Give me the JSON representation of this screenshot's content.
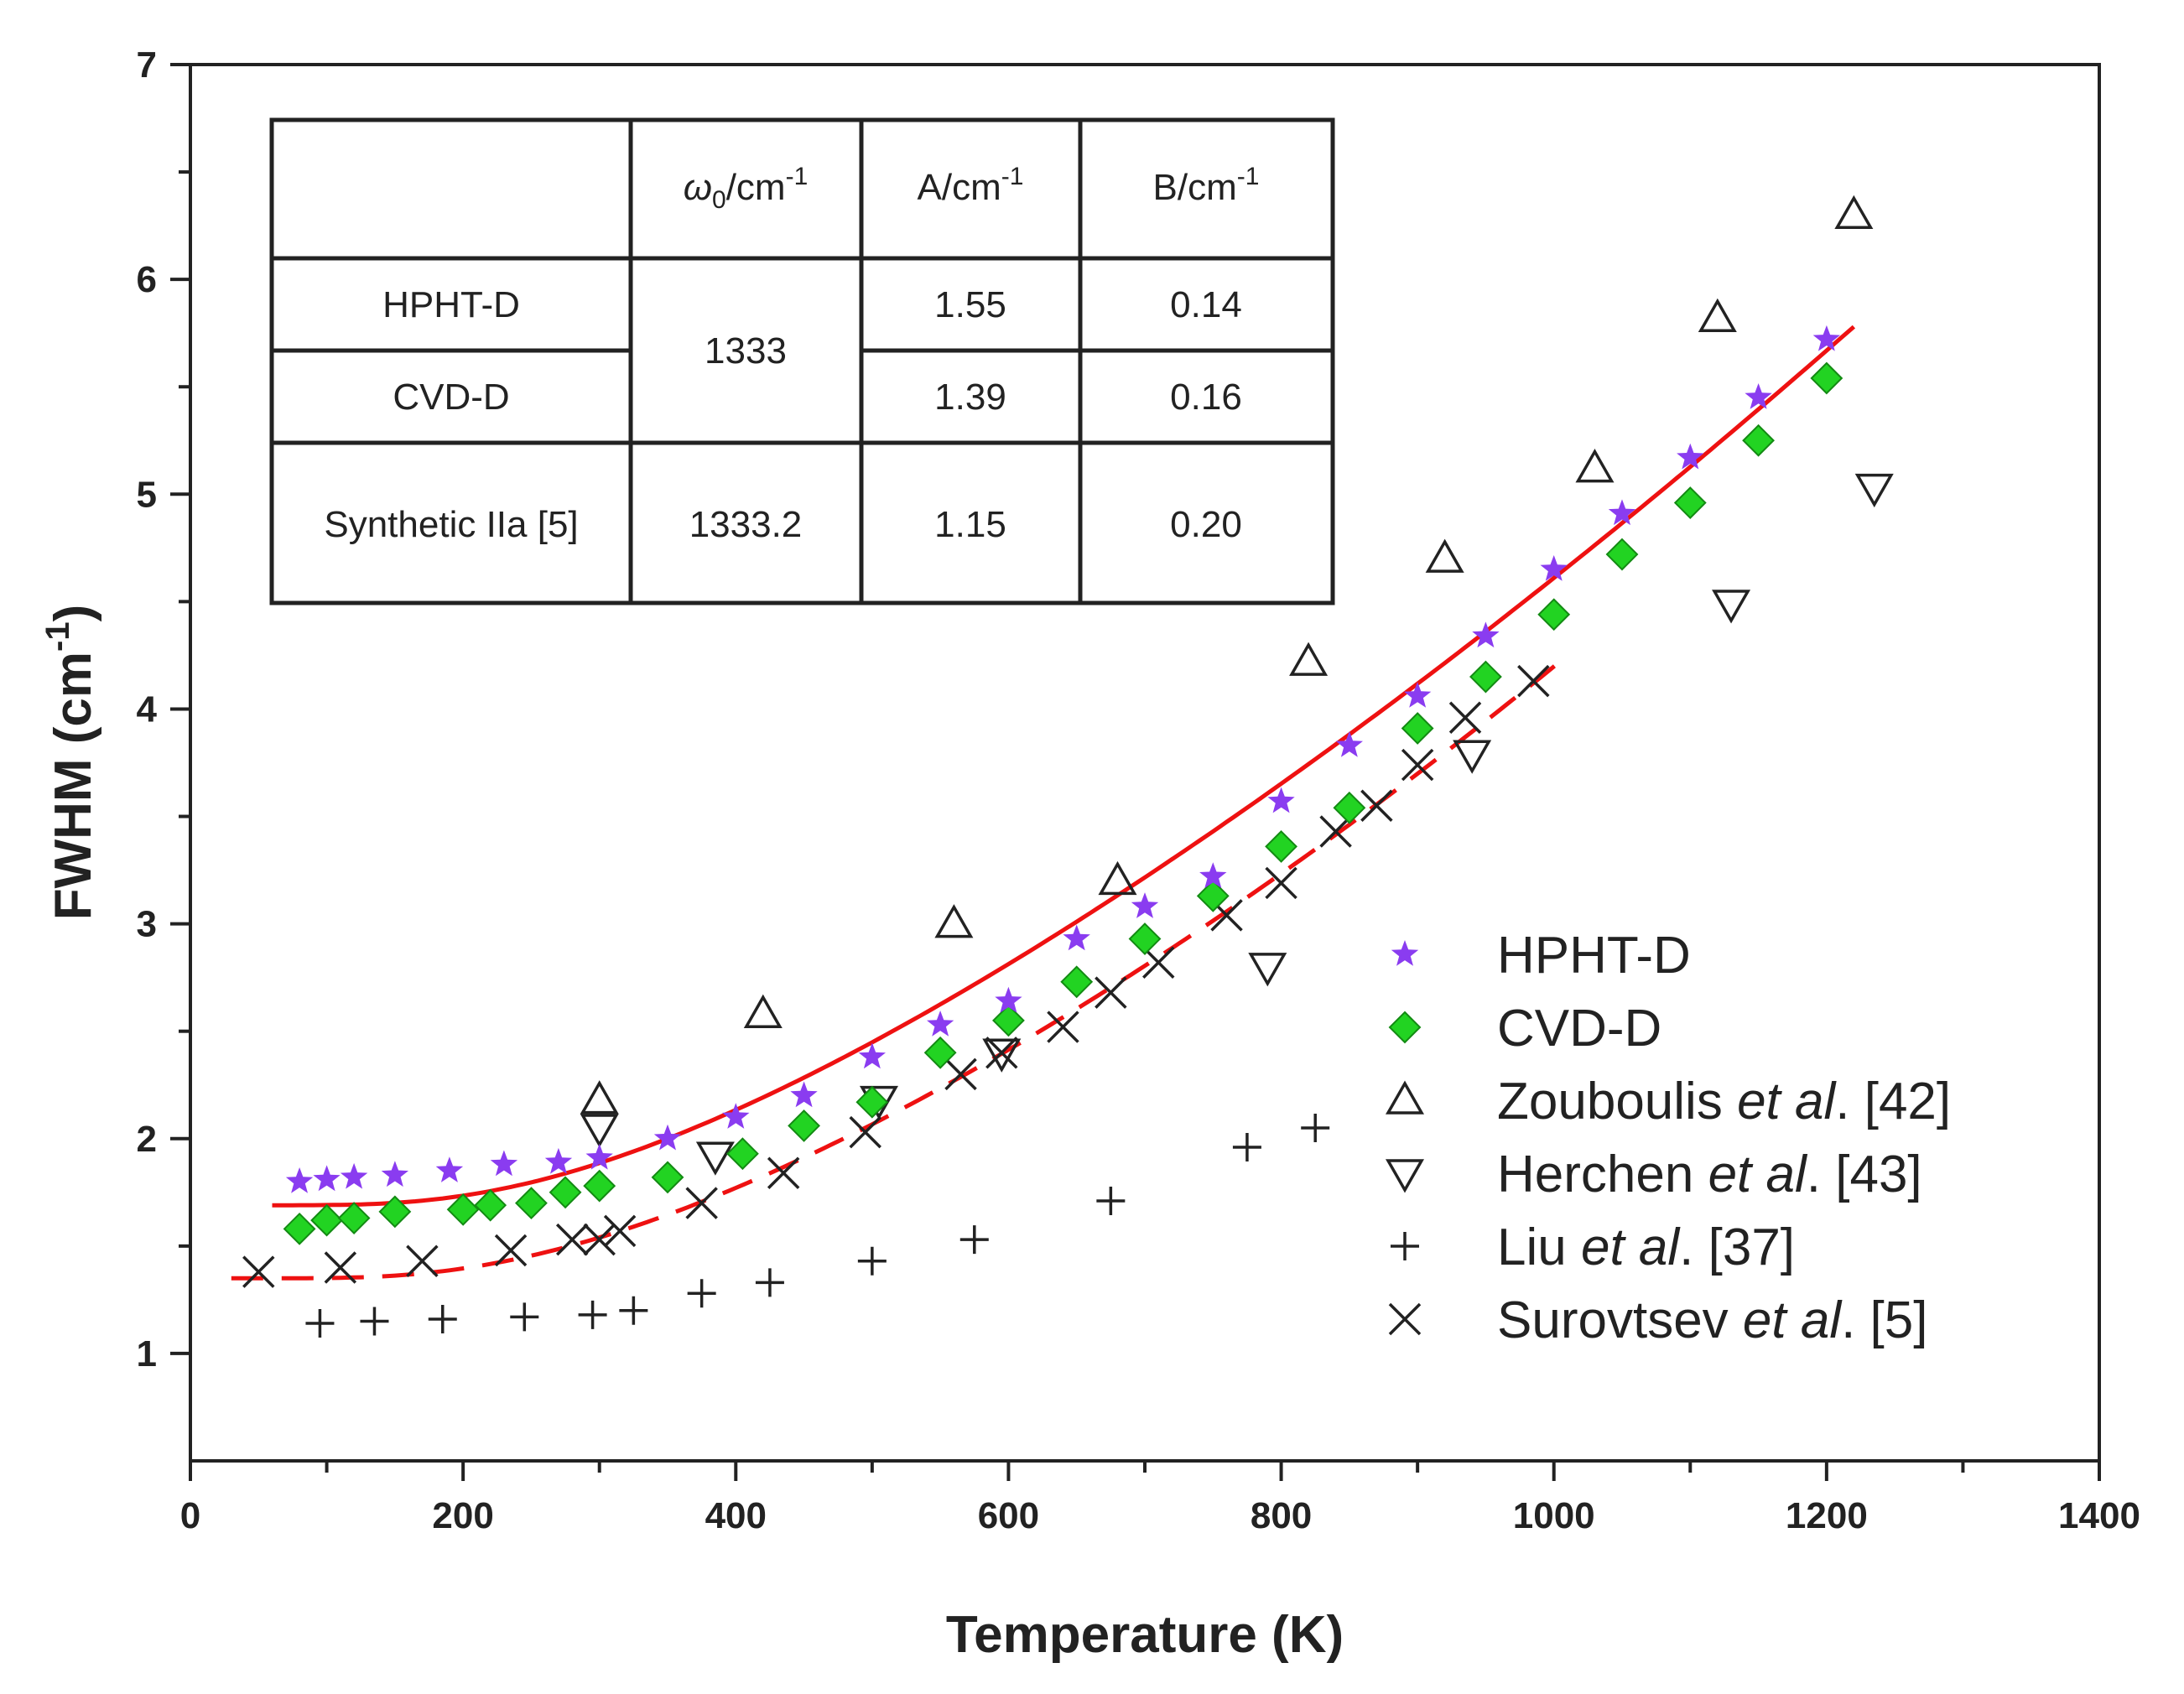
{
  "chart_data": {
    "type": "scatter",
    "title": "",
    "xlabel": "Temperature (K)",
    "ylabel_main": "FWHM (cm",
    "ylabel_sup": "-1",
    "ylabel_close": ")",
    "xlim": [
      0,
      1400
    ],
    "ylim": [
      0.5,
      7
    ],
    "xticks": [
      0,
      200,
      400,
      600,
      800,
      1000,
      1200,
      1400
    ],
    "yticks": [
      1,
      2,
      3,
      4,
      5,
      6,
      7
    ],
    "grid": false,
    "legend_position": "bottom-right",
    "series": [
      {
        "name_main": "HPHT-D",
        "name_italic": "",
        "name_ref": "",
        "marker": "star",
        "color": "#8a3cf0",
        "x": [
          80,
          100,
          120,
          150,
          190,
          230,
          270,
          300,
          350,
          400,
          450,
          500,
          550,
          600,
          650,
          700,
          750,
          800,
          850,
          900,
          950,
          1000,
          1050,
          1100,
          1150,
          1200
        ],
        "y": [
          1.8,
          1.81,
          1.82,
          1.83,
          1.85,
          1.88,
          1.89,
          1.91,
          2.0,
          2.1,
          2.2,
          2.38,
          2.53,
          2.64,
          2.93,
          3.08,
          3.22,
          3.57,
          3.83,
          4.06,
          4.34,
          4.65,
          4.91,
          5.17,
          5.45,
          5.72
        ]
      },
      {
        "name_main": "CVD-D",
        "name_italic": "",
        "name_ref": "",
        "marker": "diamond",
        "color": "#22d322",
        "x": [
          80,
          100,
          120,
          150,
          200,
          220,
          250,
          275,
          300,
          350,
          405,
          450,
          500,
          550,
          600,
          650,
          700,
          750,
          800,
          850,
          900,
          950,
          1000,
          1050,
          1100,
          1150,
          1200
        ],
        "y": [
          1.58,
          1.62,
          1.63,
          1.66,
          1.67,
          1.69,
          1.7,
          1.75,
          1.78,
          1.82,
          1.93,
          2.06,
          2.17,
          2.4,
          2.55,
          2.73,
          2.93,
          3.13,
          3.36,
          3.54,
          3.91,
          4.15,
          4.44,
          4.72,
          4.96,
          5.25,
          5.54
        ]
      },
      {
        "name_main": "Zouboulis ",
        "name_italic": "et al",
        "name_ref": ". [42]",
        "marker": "triangle-up",
        "color": "#222222",
        "x": [
          300,
          420,
          560,
          680,
          820,
          920,
          1030,
          1120,
          1220
        ],
        "y": [
          2.18,
          2.58,
          3.0,
          3.2,
          4.22,
          4.7,
          5.12,
          5.82,
          6.3
        ]
      },
      {
        "name_main": "Herchen ",
        "name_italic": "et al",
        "name_ref": ". [43]",
        "marker": "triangle-down",
        "color": "#222222",
        "x": [
          300,
          385,
          505,
          595,
          790,
          940,
          1130,
          1235
        ],
        "y": [
          2.05,
          1.92,
          2.18,
          2.4,
          2.8,
          3.79,
          4.49,
          5.03
        ]
      },
      {
        "name_main": "Liu ",
        "name_italic": "et al",
        "name_ref": ". [37]",
        "marker": "plus",
        "color": "#222222",
        "x": [
          95,
          135,
          185,
          245,
          295,
          325,
          375,
          425,
          500,
          575,
          675,
          775,
          825
        ],
        "y": [
          1.14,
          1.15,
          1.16,
          1.17,
          1.18,
          1.2,
          1.28,
          1.33,
          1.43,
          1.53,
          1.71,
          1.96,
          2.05
        ]
      },
      {
        "name_main": "Surovtsev ",
        "name_italic": "et al",
        "name_ref": ". [5]",
        "marker": "cross",
        "color": "#222222",
        "x": [
          50,
          110,
          170,
          235,
          280,
          300,
          315,
          375,
          435,
          495,
          565,
          595,
          640,
          675,
          710,
          760,
          800,
          840,
          870,
          900,
          935,
          985
        ],
        "y": [
          1.38,
          1.4,
          1.43,
          1.48,
          1.53,
          1.53,
          1.57,
          1.7,
          1.84,
          2.03,
          2.3,
          2.4,
          2.52,
          2.68,
          2.82,
          3.04,
          3.19,
          3.43,
          3.55,
          3.74,
          3.96,
          4.13
        ]
      }
    ],
    "fit_lines": [
      {
        "name": "fit-solid",
        "style": "solid",
        "color": "#ee1111",
        "omega0": 1333,
        "A": 1.55,
        "B": 0.14,
        "xrange": [
          60,
          1220
        ]
      },
      {
        "name": "fit-dashed",
        "style": "dashed",
        "color": "#ee1111",
        "omega0": 1333.2,
        "A": 1.15,
        "B": 0.2,
        "xrange": [
          30,
          1005
        ]
      }
    ],
    "inset_table": {
      "headers": {
        "col1": "",
        "col2_main": "ω",
        "col2_sub": "0",
        "col2_unit": "/cm",
        "col2_sup": "-1",
        "col3_unit": "A/cm",
        "col3_sup": "-1",
        "col4_unit": "B/cm",
        "col4_sup": "-1"
      },
      "rows": [
        {
          "name": "HPHT-D",
          "A": "1.55",
          "B": "0.14"
        },
        {
          "name": "CVD-D",
          "A": "1.39",
          "B": "0.16"
        },
        {
          "name": "Synthetic IIa [5]",
          "omega": "1333.2",
          "A": "1.15",
          "B": "0.20"
        }
      ],
      "merged_omega": "1333"
    }
  }
}
